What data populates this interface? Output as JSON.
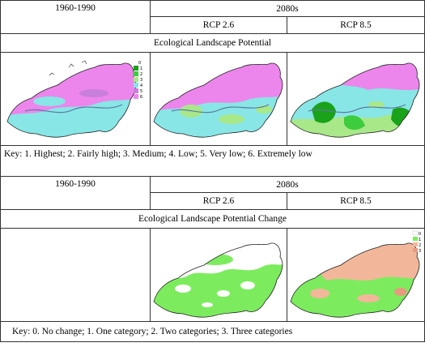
{
  "section1": {
    "baseline_label": "1960-1990",
    "future_label": "2080s",
    "rcp_low_label": "RCP 2.6",
    "rcp_high_label": "RCP 8.5",
    "title": "Ecological Landscape Potential",
    "legend_items": [
      "0",
      "1",
      "2",
      "3",
      "4",
      "5",
      "6"
    ],
    "legend_colors": [
      "#ffffff",
      "#1aa21a",
      "#3dcc3d",
      "#a8e889",
      "#88e6e6",
      "#c87fdc",
      "#ec86ec"
    ],
    "key_text": "Key: 1. Highest; 2. Fairly high; 3. Medium; 4. Low; 5. Very low; 6. Extremely low"
  },
  "section2": {
    "baseline_label": "1960-1990",
    "future_label": "2080s",
    "rcp_low_label": "RCP 2.6",
    "rcp_high_label": "RCP 8.5",
    "title": "Ecological Landscape Potential Change",
    "legend_items": [
      "0",
      "1",
      "2",
      "3"
    ],
    "legend_colors": [
      "#ffffff",
      "#7cec5e",
      "#f2b79a",
      "#e89a80"
    ],
    "key_text": "Key: 0. No change; 1.  One category; 2. Two categories; 3. Three categories"
  }
}
